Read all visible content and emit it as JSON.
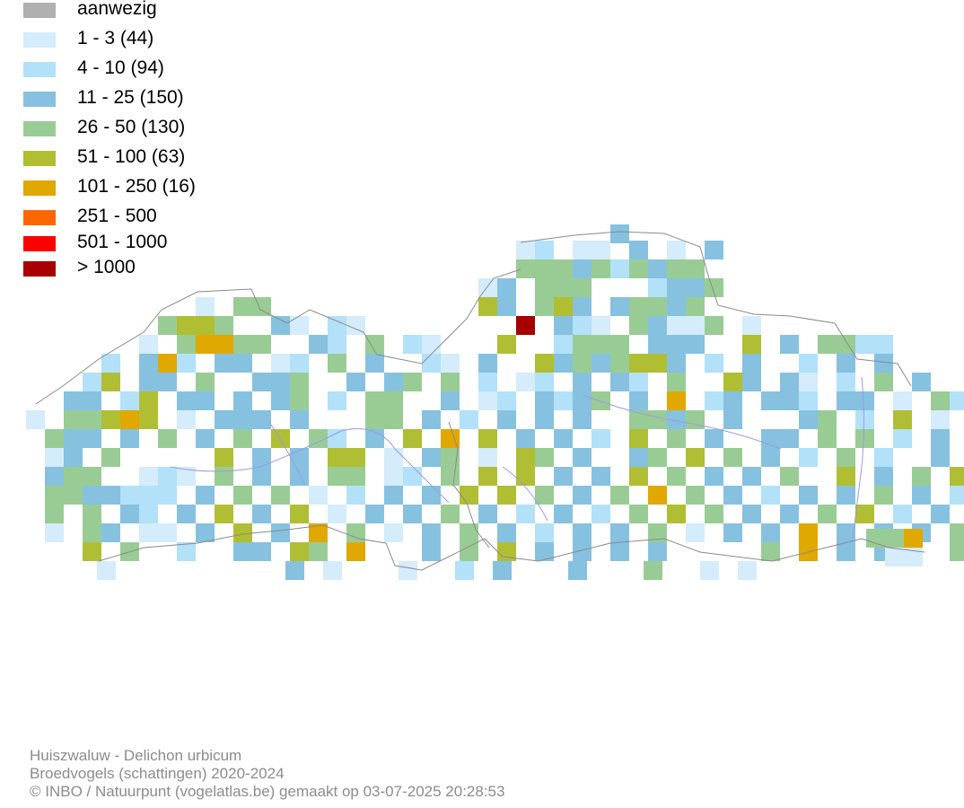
{
  "legend": {
    "items": [
      {
        "label": "aanwezig",
        "color": "#b0b0b0"
      },
      {
        "label": "1 - 3 (44)",
        "color": "#d4ecfb"
      },
      {
        "label": "4 - 10 (94)",
        "color": "#b2e1f9"
      },
      {
        "label": "11 - 25 (150)",
        "color": "#86c1e0"
      },
      {
        "label": "26 - 50 (130)",
        "color": "#99cc95"
      },
      {
        "label": "51 - 100 (63)",
        "color": "#b0be33"
      },
      {
        "label": "101 - 250 (16)",
        "color": "#e0a800"
      },
      {
        "label": "251 - 500",
        "color": "#ff6600"
      },
      {
        "label": "501 - 1000",
        "color": "#ff0000"
      },
      {
        "label": "> 1000",
        "color": "#a80000"
      }
    ]
  },
  "map": {
    "region": "Vlaanderen",
    "river_color": "#9a9ae8",
    "border_color": "#8a8a8a"
  },
  "credits": {
    "species": "Huiszwaluw - Delichon urbicum",
    "dataset": "Broedvogels (schattingen) 2020-2024",
    "copyright": "© INBO / Natuurpunt (vogelatlas.be) gemaakt op 03-07-2025 20:28:53"
  }
}
